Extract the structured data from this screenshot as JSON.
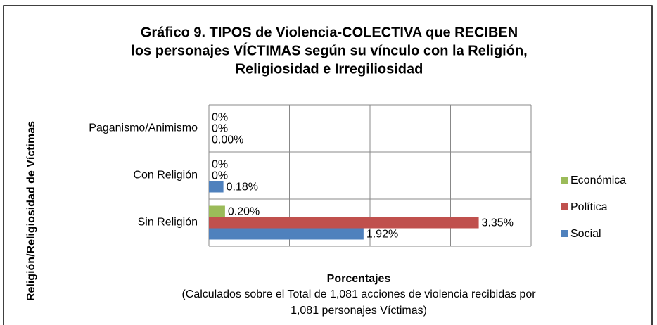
{
  "chart_data": {
    "type": "bar",
    "orientation": "horizontal",
    "title": [
      "Gráfico 9. TIPOS de Violencia-COLECTIVA que RECIBEN",
      "los personajes VÍCTIMAS según su vínculo con la Religión,",
      "Religiosidad e Irregiliosidad"
    ],
    "y_axis_label": "Religión/Religiosidad de Víctimas",
    "x_axis_label": "Porcentajes",
    "x_axis_note": [
      "(Calculados sobre el Total de 1,081 acciones de violencia recibidas por",
      "1,081 personajes Víctimas)"
    ],
    "categories": [
      "Paganismo/Animismo",
      "Con Religión",
      "Sin Religión"
    ],
    "series": [
      {
        "name": "Económica",
        "color": "#9bbb59",
        "values": [
          0,
          0,
          0.2
        ],
        "value_labels": [
          "0%",
          "0%",
          "0.20%"
        ]
      },
      {
        "name": "Política",
        "color": "#c0504d",
        "values": [
          0,
          0,
          3.35
        ],
        "value_labels": [
          "0%",
          "0%",
          "3.35%"
        ]
      },
      {
        "name": "Social",
        "color": "#4f81bd",
        "values": [
          0,
          0.18,
          1.92
        ],
        "value_labels": [
          "0.00%",
          "0.18%",
          "1.92%"
        ]
      }
    ],
    "xlim": [
      0,
      4
    ],
    "xticks": [
      0,
      1,
      2,
      3,
      4
    ],
    "grid": true,
    "legend": "right"
  }
}
